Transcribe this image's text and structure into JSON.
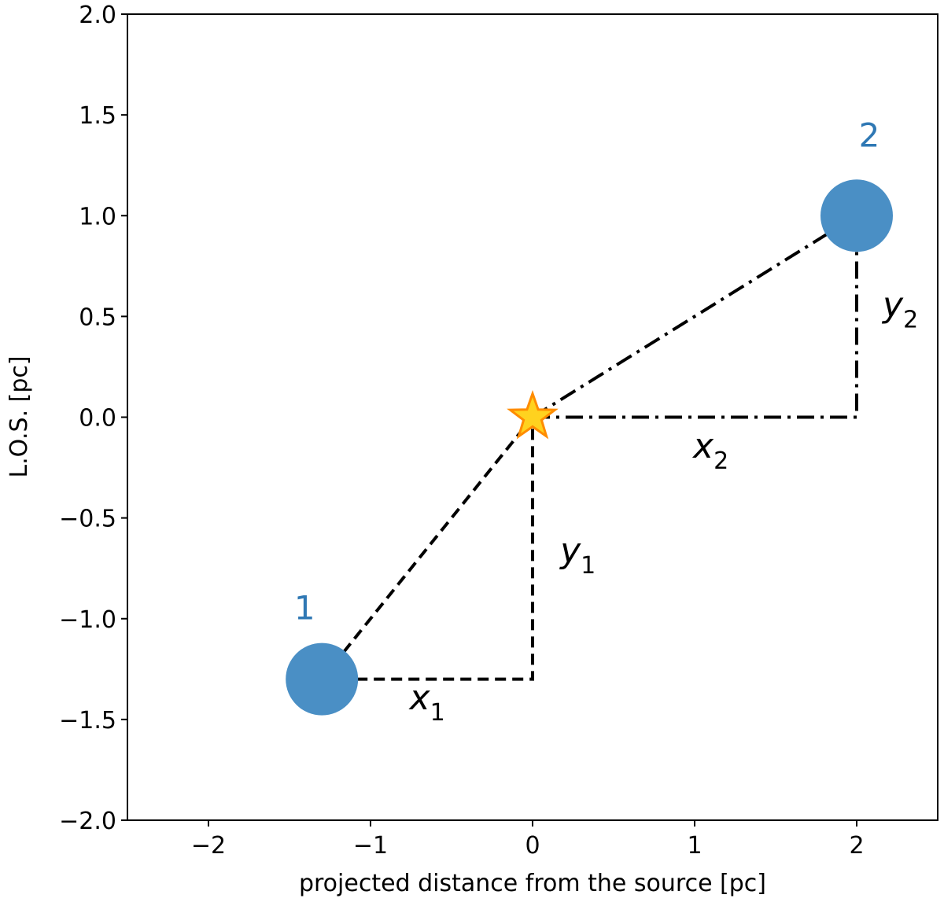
{
  "chart_data": {
    "type": "scatter",
    "xlabel": "projected distance from the source [pc]",
    "ylabel": "L.O.S. [pc]",
    "xlim": [
      -2.5,
      2.5
    ],
    "ylim": [
      -2.0,
      2.0
    ],
    "x_ticks": [
      -2,
      -1,
      0,
      1,
      2
    ],
    "x_tick_labels": [
      "−2",
      "−1",
      "0",
      "1",
      "2"
    ],
    "y_ticks": [
      -2.0,
      -1.5,
      -1.0,
      -0.5,
      0.0,
      0.5,
      1.0,
      1.5,
      2.0
    ],
    "y_tick_labels": [
      "−2.0",
      "−1.5",
      "−1.0",
      "−0.5",
      "0.0",
      "0.5",
      "1.0",
      "1.5",
      "2.0"
    ],
    "grid": false,
    "source": {
      "x": 0.0,
      "y": 0.0,
      "marker": "star",
      "fill": "#ffd21f",
      "edge": "#ff8c00"
    },
    "clouds": [
      {
        "label": "1",
        "x": -1.3,
        "y": -1.3,
        "color": "#4a8fc5",
        "label_color": "#2f78b4"
      },
      {
        "label": "2",
        "x": 2.0,
        "y": 1.0,
        "color": "#4a8fc5",
        "label_color": "#2f78b4"
      }
    ],
    "paths": [
      {
        "style": "dashed",
        "points": [
          [
            -1.3,
            -1.3
          ],
          [
            0.0,
            0.0
          ]
        ]
      },
      {
        "style": "dashed",
        "points": [
          [
            -1.3,
            -1.3
          ],
          [
            0.0,
            -1.3
          ],
          [
            0.0,
            0.0
          ]
        ]
      },
      {
        "style": "dashdot",
        "points": [
          [
            0.0,
            0.0
          ],
          [
            2.0,
            1.0
          ]
        ]
      },
      {
        "style": "dashdot",
        "points": [
          [
            0.0,
            0.0
          ],
          [
            2.0,
            0.0
          ],
          [
            2.0,
            1.0
          ]
        ]
      }
    ],
    "annotations": [
      {
        "base": "x",
        "sub": "1",
        "x": -0.65,
        "y": -1.45
      },
      {
        "base": "y",
        "sub": "1",
        "x": 0.28,
        "y": -0.72
      },
      {
        "base": "x",
        "sub": "2",
        "x": 1.1,
        "y": -0.2
      },
      {
        "base": "y",
        "sub": "2",
        "x": 2.27,
        "y": 0.5
      }
    ]
  }
}
